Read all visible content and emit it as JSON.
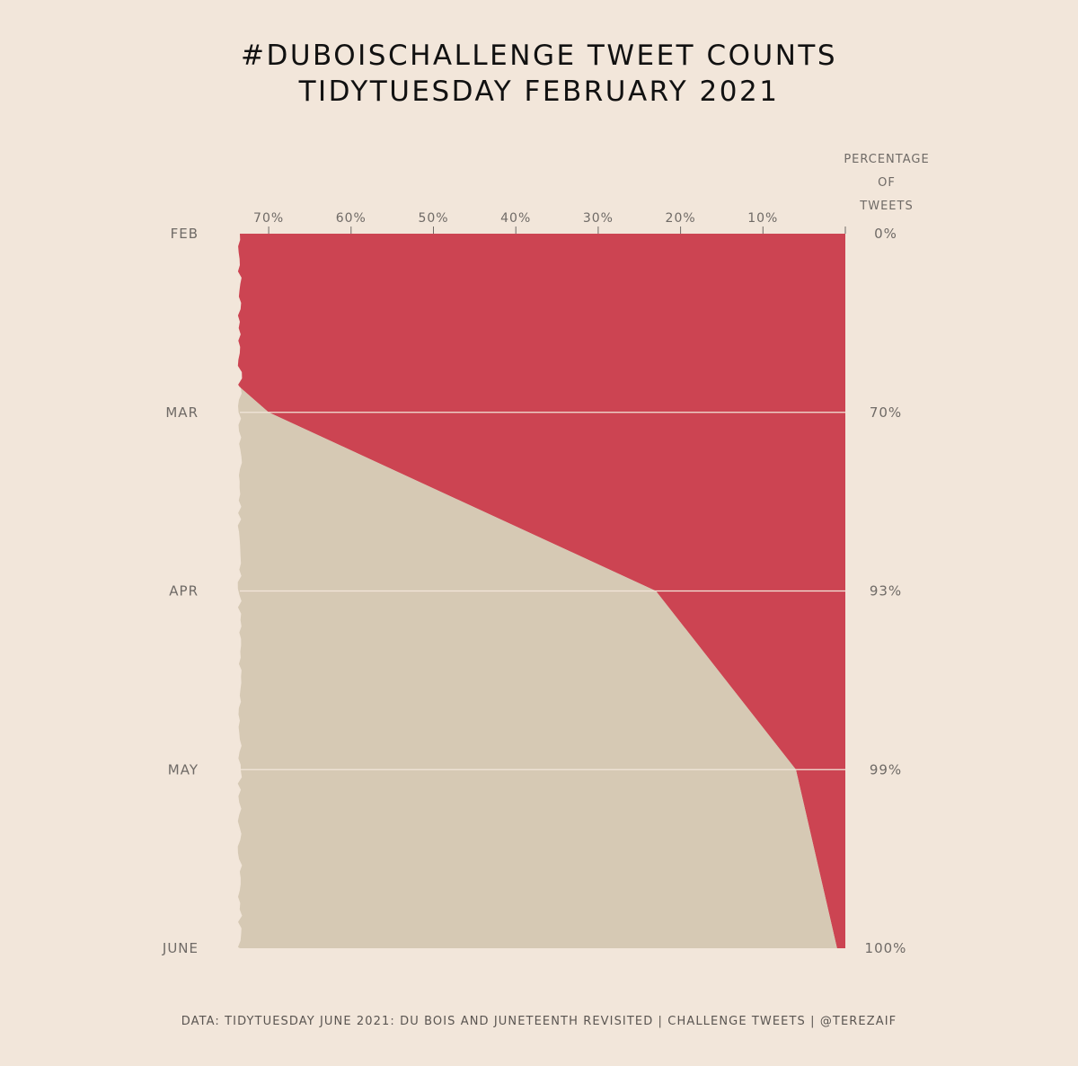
{
  "title": {
    "line1": "#DUBOISCHALLENGE TWEET COUNTS",
    "line2": "TIDYTUESDAY FEBRUARY 2021"
  },
  "caption": "DATA: TIDYTUESDAY JUNE 2021: DU BOIS AND JUNETEENTH REVISITED | CHALLENGE TWEETS | @TEREZAIF",
  "colors": {
    "background": "#f2e6da",
    "remaining_area": "#cc4452",
    "cumulative_area": "#d6c9b4",
    "gridline": "#f2e6da",
    "text": "#6f6a66"
  },
  "chart_data": {
    "type": "area",
    "title": "#DUBOISCHALLENGE TWEET COUNTS TIDYTUESDAY FEBRUARY 2021",
    "orientation": "vertical-time",
    "months": [
      "FEB",
      "MAR",
      "APR",
      "MAY",
      "JUNE"
    ],
    "cumulative_percent_labels": [
      "0%",
      "70%",
      "93%",
      "99%",
      "100%"
    ],
    "cumulative_percent": [
      0,
      70,
      93,
      99,
      100
    ],
    "remaining_percent": [
      73.5,
      70,
      23,
      6,
      1
    ],
    "x_axis": {
      "label_lines": [
        "PERCENTAGE",
        "OF",
        "TWEETS"
      ],
      "ticks": [
        70,
        60,
        50,
        40,
        30,
        20,
        10,
        0
      ],
      "tick_labels": [
        "70%",
        "60%",
        "50%",
        "40%",
        "30%",
        "20%",
        "10%",
        ""
      ],
      "range": [
        73.5,
        0
      ],
      "reversed": true
    },
    "grid": "horizontal lines at month boundaries",
    "legend": "none"
  }
}
